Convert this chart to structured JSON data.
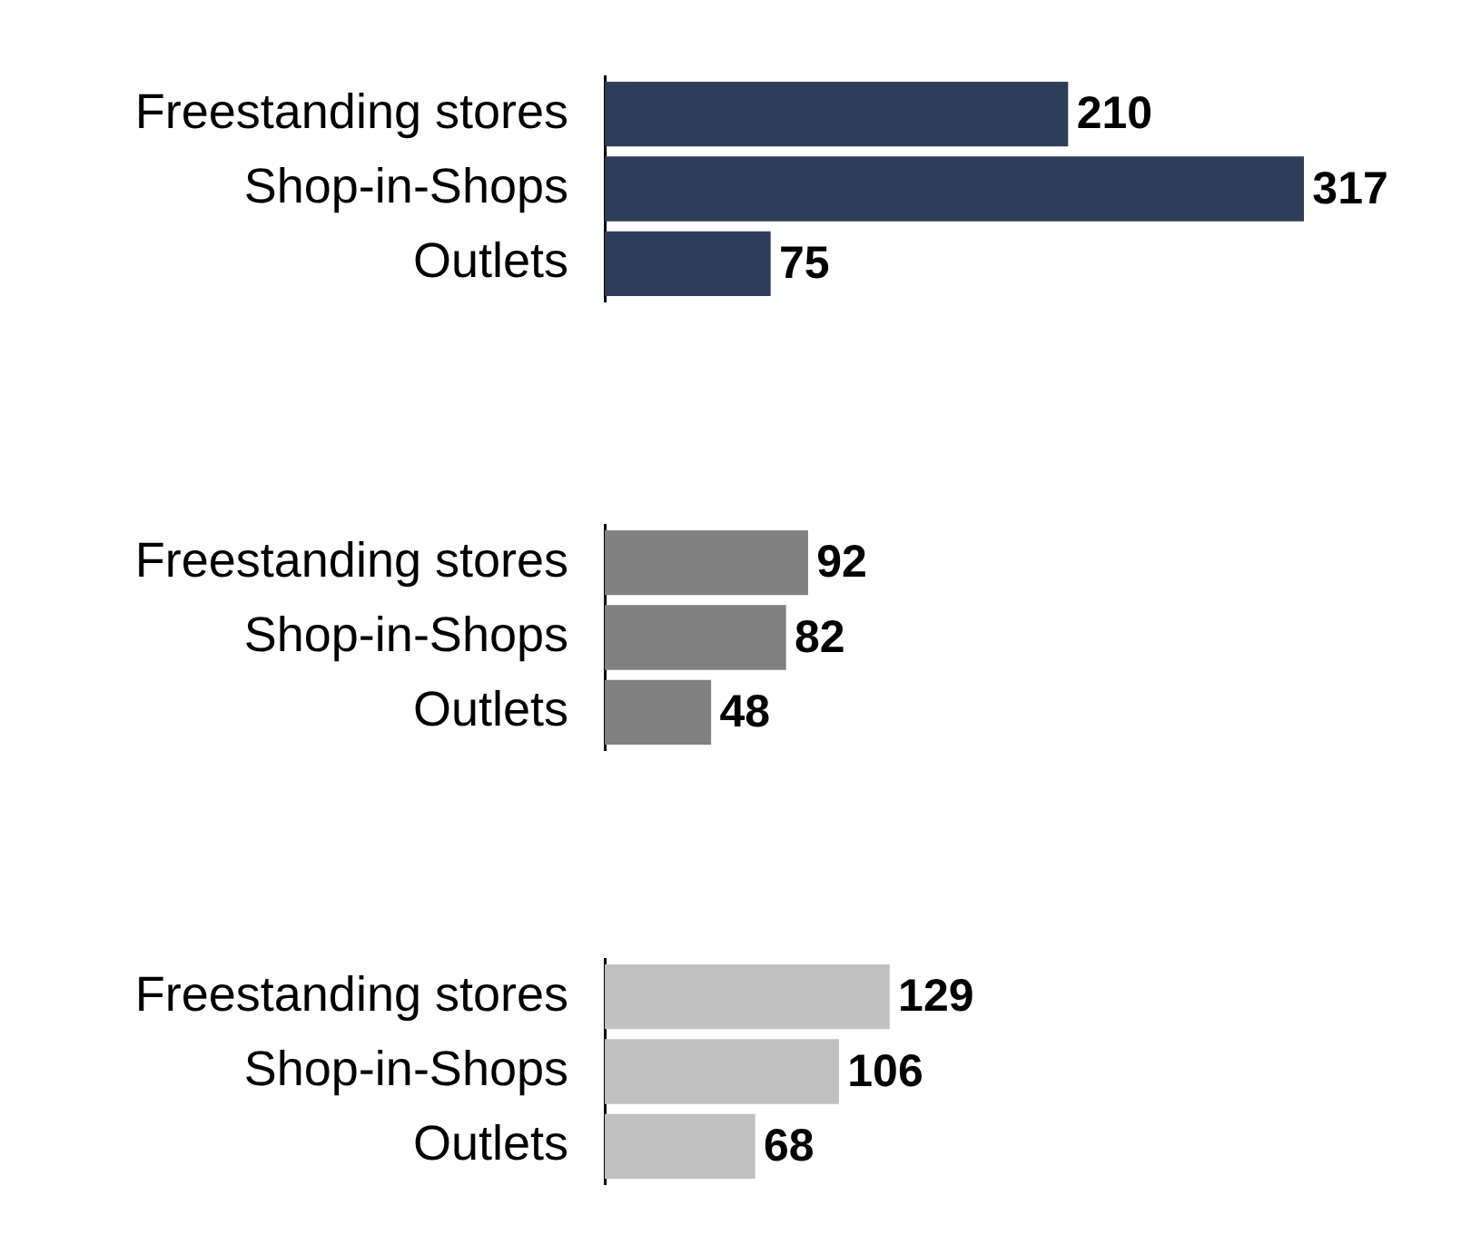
{
  "chart_data": [
    {
      "type": "bar",
      "orientation": "horizontal",
      "categories": [
        "Freestanding stores",
        "Shop-in-Shops",
        "Outlets"
      ],
      "values": [
        210,
        317,
        75
      ],
      "color": "#2c3e58",
      "data_labels": true,
      "legend": false,
      "grid": false
    },
    {
      "type": "bar",
      "orientation": "horizontal",
      "categories": [
        "Freestanding stores",
        "Shop-in-Shops",
        "Outlets"
      ],
      "values": [
        92,
        82,
        48
      ],
      "color": "#808080",
      "data_labels": true,
      "legend": false,
      "grid": false
    },
    {
      "type": "bar",
      "orientation": "horizontal",
      "categories": [
        "Freestanding stores",
        "Shop-in-Shops",
        "Outlets"
      ],
      "values": [
        129,
        106,
        68
      ],
      "color": "#c0c0c0",
      "data_labels": true,
      "legend": false,
      "grid": false
    }
  ]
}
